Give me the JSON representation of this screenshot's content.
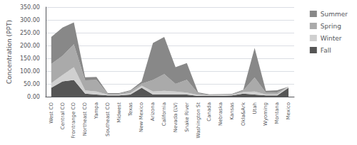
{
  "chart_data": {
    "type": "area",
    "stacked": true,
    "ylabel": "Concentration (PPT)",
    "categories": [
      "West CO",
      "Central CO",
      "Frontrange CO",
      "Northeast CO",
      "Yampa",
      "Southeast CO",
      "Midwest",
      "Texas",
      "New Mexico",
      "Arizona",
      "California",
      "Nevada (LV)",
      "Snake River",
      "Washington St",
      "Canada",
      "Nebraska",
      "Kansas",
      "Okla&Ark",
      "Utah",
      "Wyoming",
      "Montana",
      "Mexico"
    ],
    "series": [
      {
        "name": "Fall",
        "color": "#555555",
        "values": [
          35,
          60,
          65,
          12,
          8,
          5,
          5,
          8,
          35,
          8,
          8,
          8,
          8,
          3,
          3,
          3,
          5,
          12,
          8,
          5,
          5,
          35
        ]
      },
      {
        "name": "Winter",
        "color": "#d0d0d0",
        "values": [
          18,
          25,
          50,
          12,
          12,
          3,
          3,
          6,
          8,
          12,
          15,
          12,
          8,
          4,
          2,
          3,
          2,
          6,
          12,
          4,
          4,
          4
        ]
      },
      {
        "name": "Spring",
        "color": "#aaaaaa",
        "values": [
          75,
          75,
          90,
          40,
          45,
          3,
          3,
          8,
          8,
          45,
          65,
          30,
          50,
          6,
          2,
          2,
          2,
          6,
          55,
          6,
          8,
          0
        ]
      },
      {
        "name": "Summer",
        "color": "#888888",
        "values": [
          105,
          110,
          85,
          12,
          12,
          3,
          3,
          3,
          8,
          145,
          145,
          65,
          65,
          4,
          2,
          2,
          2,
          3,
          115,
          8,
          8,
          0
        ]
      }
    ],
    "ylim": [
      0,
      350
    ],
    "yticks": [
      {
        "value": 0,
        "label": "0.00"
      },
      {
        "value": 50,
        "label": "50.00"
      },
      {
        "value": 100,
        "label": "100.00"
      },
      {
        "value": 150,
        "label": "150.00"
      },
      {
        "value": 200,
        "label": "200.00"
      },
      {
        "value": 250,
        "label": "250.00"
      },
      {
        "value": 300,
        "label": "300.00"
      },
      {
        "value": 350,
        "label": "350.00"
      }
    ],
    "grid": true,
    "legend": "upper right"
  }
}
